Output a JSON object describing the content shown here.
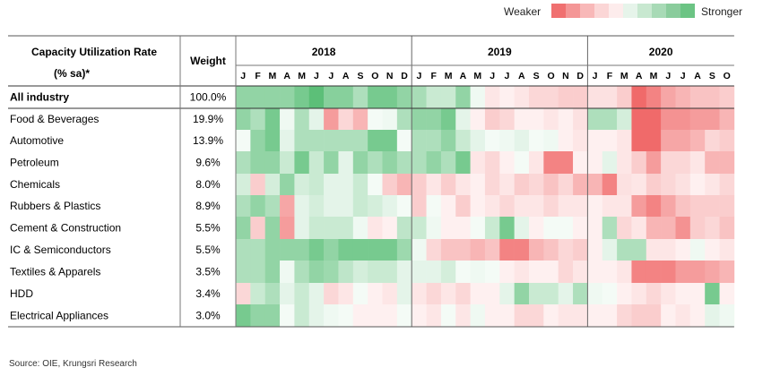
{
  "legend": {
    "weaker_label": "Weaker",
    "stronger_label": "Stronger",
    "scale_colors": [
      "#f07070",
      "#f49696",
      "#f8b8b8",
      "#fbd6d6",
      "#fdecec",
      "#e6f4ea",
      "#c8e8d0",
      "#a8dab6",
      "#8acc9c",
      "#6cc484"
    ]
  },
  "source": "Source: OIE, Krungsri Research",
  "chart_data": {
    "type": "heatmap",
    "header_label_line1": "Capacity Utilization Rate",
    "header_label_line2": "(% sa)*",
    "weight_header": "Weight",
    "years": [
      {
        "label": "2018",
        "months": [
          "J",
          "F",
          "M",
          "A",
          "M",
          "J",
          "J",
          "A",
          "S",
          "O",
          "N",
          "D"
        ]
      },
      {
        "label": "2019",
        "months": [
          "J",
          "F",
          "M",
          "A",
          "M",
          "J",
          "J",
          "A",
          "S",
          "O",
          "N",
          "D"
        ]
      },
      {
        "label": "2020",
        "months": [
          "J",
          "F",
          "M",
          "A",
          "M",
          "J",
          "J",
          "A",
          "S",
          "O"
        ]
      }
    ],
    "scale": {
      "min": -3,
      "max": 3,
      "weaker_color": "#f06a6a",
      "neutral_color": "#ffffff",
      "stronger_color": "#5cbf78"
    },
    "rows": [
      {
        "name": "All industry",
        "weight": "100.0%",
        "bold": true,
        "values": [
          2,
          2,
          2,
          2,
          2.5,
          3,
          2.2,
          2.2,
          1.5,
          2.5,
          2.5,
          2,
          1.6,
          1,
          1,
          2,
          0.3,
          -0.5,
          -0.3,
          -0.5,
          -0.8,
          -0.8,
          -1,
          -1,
          -0.6,
          -0.6,
          -1,
          -3,
          -2.5,
          -1.8,
          -1.5,
          -1.2,
          -1.2,
          -1
        ]
      },
      {
        "name": "Food & Beverages",
        "weight": "19.9%",
        "values": [
          2,
          1.5,
          2.5,
          0.3,
          1.5,
          0.5,
          -2,
          -0.8,
          -1.5,
          0.2,
          0.3,
          1.5,
          2,
          2,
          2.5,
          0.5,
          -0.3,
          -1,
          -0.8,
          -0.3,
          -0.3,
          -0.5,
          -0.3,
          -0.6,
          1.5,
          1.5,
          0.8,
          -3,
          -3,
          -2.2,
          -2.2,
          -2,
          -2,
          -1.5
        ]
      },
      {
        "name": "Automotive",
        "weight": "13.9%",
        "values": [
          0.2,
          2,
          2.5,
          0.5,
          1.5,
          1.5,
          1.5,
          1.5,
          1.5,
          2.5,
          2.5,
          0.2,
          1.5,
          1.5,
          2,
          1,
          0.5,
          0.2,
          0.3,
          0.5,
          0.2,
          0.3,
          -0.3,
          -0.5,
          -0.3,
          -0.3,
          -0.5,
          -3,
          -3,
          -1.8,
          -1.8,
          -1.5,
          -0.8,
          -1
        ]
      },
      {
        "name": "Petroleum",
        "weight": "9.6%",
        "values": [
          1.5,
          2,
          2,
          1,
          2.5,
          1,
          2,
          0.5,
          2,
          1.5,
          2,
          1.5,
          1.5,
          2,
          1.5,
          2.5,
          -0.5,
          -0.8,
          -0.3,
          0.2,
          -0.5,
          -2.5,
          -2.5,
          -0.3,
          -0.3,
          0.5,
          -0.5,
          -1,
          -2,
          -0.8,
          -0.8,
          -0.5,
          -1.5,
          -1.5
        ]
      },
      {
        "name": "Chemicals",
        "weight": "8.0%",
        "values": [
          0.8,
          -1,
          0.8,
          2,
          0.8,
          1,
          0.5,
          0.5,
          1,
          0.2,
          -1,
          -1.5,
          -1,
          -0.5,
          -1,
          -0.5,
          -0.3,
          -0.8,
          -0.5,
          -1,
          -0.8,
          -1.2,
          -0.8,
          -1.5,
          -1.5,
          -2.5,
          -0.6,
          -0.5,
          -1,
          -0.8,
          -0.6,
          -0.3,
          -0.5,
          -0.8
        ]
      },
      {
        "name": "Rubbers & Plastics",
        "weight": "8.9%",
        "values": [
          1.5,
          2,
          1.5,
          -1.8,
          0.5,
          0.8,
          0.5,
          0.5,
          1,
          0.8,
          0.5,
          0.2,
          -1,
          0.2,
          -0.3,
          -1,
          -0.3,
          -0.5,
          -0.8,
          -0.5,
          -0.5,
          -0.8,
          -0.5,
          -0.5,
          -0.3,
          -0.5,
          -0.5,
          -2,
          -2.5,
          -1.8,
          -1.2,
          -1,
          -1,
          -1
        ]
      },
      {
        "name": "Cement & Construction",
        "weight": "5.5%",
        "values": [
          2,
          -1,
          2,
          -2,
          0.5,
          1,
          1,
          1,
          0.3,
          -0.5,
          -0.3,
          1.2,
          1,
          0.3,
          -0.3,
          -0.3,
          0.2,
          1,
          2.5,
          0.5,
          -0.3,
          0.2,
          0.2,
          -0.3,
          -0.3,
          1.5,
          -0.8,
          -0.5,
          -1.5,
          -1.5,
          -2.2,
          -1,
          -0.8,
          -1.2
        ]
      },
      {
        "name": "IC & Semiconductors",
        "weight": "5.5%",
        "values": [
          1.5,
          1.5,
          2,
          2,
          2,
          2.5,
          2,
          2.5,
          2.5,
          2.5,
          2.5,
          1.8,
          0.3,
          -0.8,
          -1.2,
          -1.2,
          -1.5,
          -1.2,
          -2.5,
          -2.5,
          -1.5,
          -1.2,
          -0.8,
          -1,
          -0.3,
          0.5,
          1.5,
          1.5,
          -0.5,
          -0.5,
          -0.3,
          0.3,
          -0.3,
          -0.5
        ]
      },
      {
        "name": "Textiles & Apparels",
        "weight": "3.5%",
        "values": [
          1.5,
          1.5,
          2,
          0.3,
          1.5,
          2,
          1.8,
          1.2,
          0.8,
          1,
          1,
          0.5,
          0.5,
          0.5,
          0.8,
          0.2,
          0.3,
          0.2,
          -0.3,
          -0.5,
          -0.3,
          -0.3,
          -0.8,
          -0.5,
          -0.3,
          -0.3,
          -0.5,
          -2.5,
          -2.5,
          -2.5,
          -2,
          -2,
          -1.8,
          -1.5
        ]
      },
      {
        "name": "HDD",
        "weight": "3.4%",
        "values": [
          -0.8,
          1,
          1.5,
          0.5,
          1,
          0.5,
          -0.8,
          -0.5,
          0.2,
          -0.3,
          -0.5,
          0.5,
          -0.5,
          -0.8,
          -0.5,
          -0.8,
          -0.3,
          -0.3,
          0.5,
          2,
          1,
          1,
          0.5,
          1.5,
          0.3,
          0.2,
          -0.3,
          -0.5,
          -0.8,
          -0.5,
          -0.3,
          -0.3,
          2.5,
          -0.3
        ]
      },
      {
        "name": "Electrical Appliances",
        "weight": "3.0%",
        "values": [
          2.5,
          2,
          2,
          0.2,
          1,
          0.5,
          0.3,
          0.2,
          -0.3,
          -0.3,
          -0.3,
          0.2,
          -0.3,
          -0.5,
          0.2,
          -0.5,
          0.3,
          -0.3,
          -0.3,
          -0.8,
          -0.8,
          -0.3,
          -0.5,
          -0.5,
          -0.3,
          -0.3,
          -0.8,
          -1,
          -1,
          -0.3,
          -0.5,
          -0.3,
          0.5,
          0.3
        ]
      }
    ]
  }
}
